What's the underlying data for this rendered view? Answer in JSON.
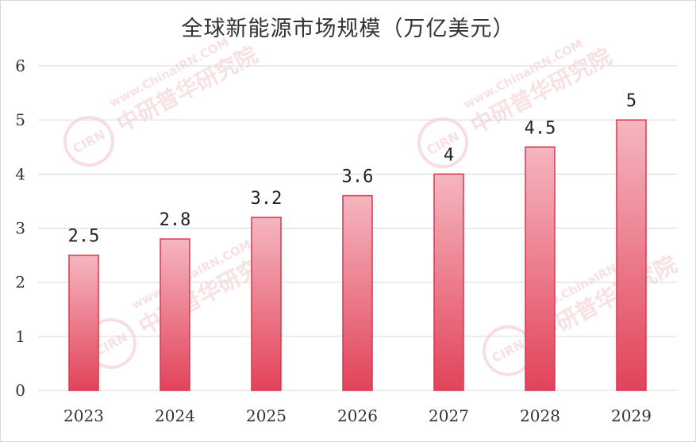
{
  "chart_data": {
    "type": "bar",
    "title": "全球新能源市场规模（万亿美元）",
    "categories": [
      "2023",
      "2024",
      "2025",
      "2026",
      "2027",
      "2028",
      "2029"
    ],
    "values": [
      2.5,
      2.8,
      3.2,
      3.6,
      4,
      4.5,
      5
    ],
    "data_labels": [
      "2.5",
      "2.8",
      "3.2",
      "3.6",
      "4",
      "4.5",
      "5"
    ],
    "yticks": [
      "0",
      "1",
      "2",
      "3",
      "4",
      "5",
      "6"
    ],
    "ylim": [
      0,
      6
    ],
    "xlabel": "",
    "ylabel": "",
    "grid": true,
    "legend": "none",
    "colors": {
      "bar_top": "#f5b6c0",
      "bar_bottom": "#e2435a",
      "bar_border": "#d9364e",
      "grid": "#d9d9d9"
    }
  },
  "watermark": {
    "logo": "CIRN",
    "text_cn": "中研普华研究院",
    "text_en": "www.ChinaIRN.COM"
  }
}
